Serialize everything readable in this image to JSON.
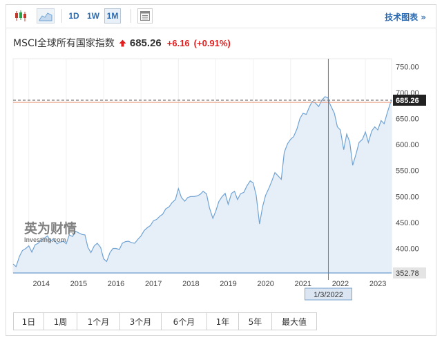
{
  "toolbar": {
    "icons": [
      "candlestick-icon",
      "area-chart-icon",
      "settings-grid-icon"
    ],
    "periods": [
      "1D",
      "1W",
      "1M"
    ],
    "active_period": "1M",
    "tech_chart_label": "技术图表 »"
  },
  "quote": {
    "name": "MSCI全球所有国家指数",
    "direction": "up",
    "price": "685.26",
    "change": "+6.16",
    "change_pct": "(+0.91%)",
    "up_color": "#e02020"
  },
  "watermark": {
    "brand": "英为财情",
    "sub": "Investing.com"
  },
  "crosshair": {
    "date_label": "1/3/2022",
    "x_date": 2022.01
  },
  "range_buttons": [
    "1日",
    "1周",
    "1个月",
    "3个月",
    "6个月",
    "1年",
    "5年",
    "最大值"
  ],
  "chart_data": {
    "type": "area",
    "x_ticks": [
      {
        "label": "2014",
        "x": 2014.0
      },
      {
        "label": "2015",
        "x": 2015.0
      },
      {
        "label": "2016",
        "x": 2016.0
      },
      {
        "label": "2017",
        "x": 2017.0
      },
      {
        "label": "2018",
        "x": 2018.0
      },
      {
        "label": "2019",
        "x": 2019.0
      },
      {
        "label": "2020",
        "x": 2020.0
      },
      {
        "label": "2021",
        "x": 2021.0
      },
      {
        "label": "2022",
        "x": 2022.0
      },
      {
        "label": "2023",
        "x": 2023.0
      }
    ],
    "y_ticks": [
      "750.00",
      "700.00",
      "650.00",
      "600.00",
      "550.00",
      "500.00",
      "450.00",
      "400.00"
    ],
    "y_tick_values": [
      750,
      700,
      650,
      600,
      550,
      500,
      450,
      400
    ],
    "xlim": [
      2013.58,
      2023.7
    ],
    "ylim": [
      352.78,
      765
    ],
    "last_value": 685.26,
    "last_label": "685.26",
    "min_label": "352.78",
    "min_value": 352.78,
    "line_color": "#6fa3d4",
    "fill_color": "#e6eef7",
    "series": [
      [
        2013.58,
        370
      ],
      [
        2013.66,
        365
      ],
      [
        2013.75,
        385
      ],
      [
        2013.83,
        396
      ],
      [
        2013.92,
        400
      ],
      [
        2014.0,
        405
      ],
      [
        2014.08,
        393
      ],
      [
        2014.17,
        407
      ],
      [
        2014.25,
        410
      ],
      [
        2014.33,
        416
      ],
      [
        2014.42,
        420
      ],
      [
        2014.5,
        424
      ],
      [
        2014.58,
        414
      ],
      [
        2014.66,
        419
      ],
      [
        2014.75,
        409
      ],
      [
        2014.83,
        412
      ],
      [
        2014.92,
        414
      ],
      [
        2015.0,
        409
      ],
      [
        2015.08,
        426
      ],
      [
        2015.17,
        423
      ],
      [
        2015.25,
        433
      ],
      [
        2015.33,
        430
      ],
      [
        2015.42,
        427
      ],
      [
        2015.5,
        426
      ],
      [
        2015.58,
        402
      ],
      [
        2015.66,
        392
      ],
      [
        2015.75,
        405
      ],
      [
        2015.83,
        410
      ],
      [
        2015.92,
        402
      ],
      [
        2016.0,
        380
      ],
      [
        2016.08,
        375
      ],
      [
        2016.17,
        392
      ],
      [
        2016.25,
        400
      ],
      [
        2016.33,
        400
      ],
      [
        2016.42,
        398
      ],
      [
        2016.5,
        410
      ],
      [
        2016.58,
        413
      ],
      [
        2016.66,
        414
      ],
      [
        2016.75,
        411
      ],
      [
        2016.83,
        410
      ],
      [
        2016.92,
        418
      ],
      [
        2017.0,
        424
      ],
      [
        2017.08,
        434
      ],
      [
        2017.17,
        440
      ],
      [
        2017.25,
        444
      ],
      [
        2017.33,
        453
      ],
      [
        2017.42,
        456
      ],
      [
        2017.5,
        462
      ],
      [
        2017.58,
        466
      ],
      [
        2017.66,
        476
      ],
      [
        2017.75,
        480
      ],
      [
        2017.83,
        488
      ],
      [
        2017.92,
        494
      ],
      [
        2018.0,
        515
      ],
      [
        2018.08,
        498
      ],
      [
        2018.17,
        491
      ],
      [
        2018.25,
        498
      ],
      [
        2018.33,
        500
      ],
      [
        2018.42,
        500
      ],
      [
        2018.5,
        501
      ],
      [
        2018.58,
        504
      ],
      [
        2018.66,
        510
      ],
      [
        2018.75,
        505
      ],
      [
        2018.83,
        478
      ],
      [
        2018.92,
        458
      ],
      [
        2019.0,
        472
      ],
      [
        2019.08,
        490
      ],
      [
        2019.17,
        500
      ],
      [
        2019.25,
        506
      ],
      [
        2019.33,
        485
      ],
      [
        2019.42,
        506
      ],
      [
        2019.5,
        510
      ],
      [
        2019.58,
        494
      ],
      [
        2019.66,
        505
      ],
      [
        2019.75,
        508
      ],
      [
        2019.83,
        520
      ],
      [
        2019.92,
        530
      ],
      [
        2020.0,
        526
      ],
      [
        2020.08,
        502
      ],
      [
        2020.17,
        447
      ],
      [
        2020.25,
        480
      ],
      [
        2020.33,
        502
      ],
      [
        2020.42,
        516
      ],
      [
        2020.5,
        530
      ],
      [
        2020.58,
        546
      ],
      [
        2020.66,
        540
      ],
      [
        2020.75,
        533
      ],
      [
        2020.83,
        585
      ],
      [
        2020.92,
        602
      ],
      [
        2021.0,
        610
      ],
      [
        2021.08,
        615
      ],
      [
        2021.17,
        630
      ],
      [
        2021.25,
        650
      ],
      [
        2021.33,
        660
      ],
      [
        2021.42,
        658
      ],
      [
        2021.5,
        672
      ],
      [
        2021.58,
        683
      ],
      [
        2021.66,
        680
      ],
      [
        2021.75,
        673
      ],
      [
        2021.83,
        685
      ],
      [
        2021.92,
        692
      ],
      [
        2022.0,
        690
      ],
      [
        2022.05,
        678
      ],
      [
        2022.17,
        660
      ],
      [
        2022.25,
        634
      ],
      [
        2022.33,
        628
      ],
      [
        2022.42,
        590
      ],
      [
        2022.5,
        620
      ],
      [
        2022.58,
        605
      ],
      [
        2022.66,
        560
      ],
      [
        2022.75,
        582
      ],
      [
        2022.83,
        604
      ],
      [
        2022.92,
        610
      ],
      [
        2023.0,
        624
      ],
      [
        2023.08,
        604
      ],
      [
        2023.17,
        626
      ],
      [
        2023.25,
        634
      ],
      [
        2023.33,
        628
      ],
      [
        2023.42,
        646
      ],
      [
        2023.5,
        640
      ],
      [
        2023.58,
        660
      ],
      [
        2023.66,
        678
      ],
      [
        2023.7,
        685.26
      ]
    ],
    "reference_lines": [
      {
        "style": "dashed",
        "value": 685.26,
        "color": "#555555"
      },
      {
        "style": "solid",
        "value": 681,
        "color": "#e8997d"
      }
    ]
  }
}
